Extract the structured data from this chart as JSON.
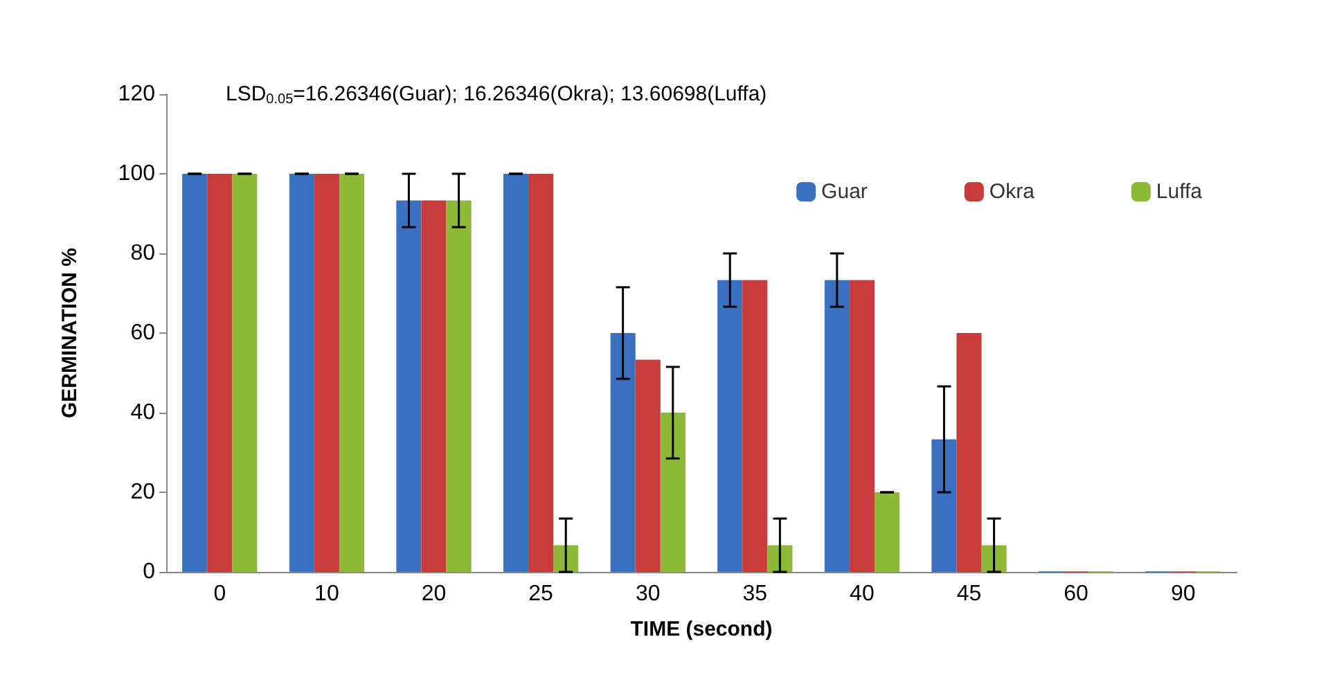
{
  "chart_data": {
    "type": "bar",
    "title": "LSD$_{0.05}$=16.26346(Guar); 16.26346(Okra); 13.60698(Luffa)",
    "xlabel": "TIME (second)",
    "ylabel": "GERMINATION %",
    "categories": [
      "0",
      "10",
      "20",
      "25",
      "30",
      "35",
      "40",
      "45",
      "60",
      "90"
    ],
    "series": [
      {
        "name": "Guar",
        "color": "#3b70c0",
        "values": [
          100,
          100,
          93.3,
          100,
          60,
          73.3,
          73.3,
          33.3,
          0,
          0
        ],
        "errors": [
          0,
          0,
          6.7,
          0,
          11.5,
          6.7,
          6.7,
          13.3,
          null,
          null
        ]
      },
      {
        "name": "Okra",
        "color": "#c83b3b",
        "values": [
          100,
          100,
          93.3,
          100,
          53.3,
          73.3,
          73.3,
          60,
          0,
          0
        ]
      },
      {
        "name": "Luffa",
        "color": "#8db838",
        "values": [
          100,
          100,
          93.3,
          6.7,
          40,
          6.7,
          20,
          6.7,
          0,
          0
        ],
        "errors": [
          0,
          0,
          6.7,
          6.7,
          11.5,
          6.7,
          0,
          6.7,
          null,
          null
        ]
      }
    ],
    "ylim": [
      0,
      120
    ],
    "yticks": [
      0,
      20,
      40,
      60,
      80,
      100,
      120
    ],
    "grid": false,
    "legend": "top right"
  }
}
